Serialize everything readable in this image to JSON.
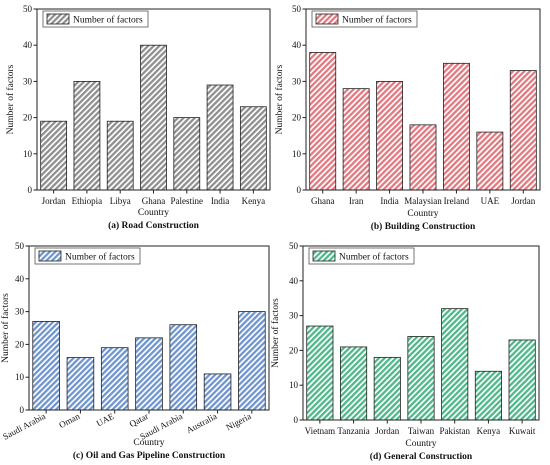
{
  "chart_data": [
    {
      "type": "bar",
      "title": "(a) Road Construction",
      "xlabel": "Country",
      "ylabel": "Number of factors",
      "ylim": [
        0,
        50
      ],
      "yticks": [
        0,
        10,
        20,
        30,
        40,
        50
      ],
      "legend": "top-left",
      "series": [
        {
          "name": "Number of factors",
          "color": "#8f8f8f",
          "values": [
            19,
            30,
            19,
            40,
            20,
            29,
            23
          ]
        }
      ],
      "categories": [
        "Jordan",
        "Ethiopia",
        "Libya",
        "Ghana",
        "Palestine",
        "India",
        "Kenya"
      ]
    },
    {
      "type": "bar",
      "title": "(b) Building Construction",
      "xlabel": "Country",
      "ylabel": "Number of factors",
      "ylim": [
        0,
        50
      ],
      "yticks": [
        0,
        10,
        20,
        30,
        40,
        50
      ],
      "legend": "top-left",
      "series": [
        {
          "name": "Number of factors",
          "color": "#e07a80",
          "values": [
            38,
            28,
            30,
            18,
            35,
            16,
            33
          ]
        }
      ],
      "categories": [
        "Ghana",
        "Iran",
        "India",
        "Malaysian",
        "Ireland",
        "UAE",
        "Jordan"
      ]
    },
    {
      "type": "bar",
      "title": "(c) Oil and Gas Pipeline Construction",
      "xlabel": "Country",
      "ylabel": "Number of factors",
      "ylim": [
        0,
        50
      ],
      "yticks": [
        0,
        10,
        20,
        30,
        40,
        50
      ],
      "legend": "top-left",
      "rotated_ticks": true,
      "series": [
        {
          "name": "Number of factors",
          "color": "#6f95cf",
          "values": [
            27,
            16,
            19,
            22,
            26,
            11,
            30
          ]
        }
      ],
      "categories": [
        "Saudi Arabia",
        "Oman",
        "UAE",
        "Qatar",
        "Saudi Arabia",
        "Australia",
        "Nigeria"
      ]
    },
    {
      "type": "bar",
      "title": "(d) General Construction",
      "xlabel": "Country",
      "ylabel": "Number of factors",
      "ylim": [
        0,
        50
      ],
      "yticks": [
        0,
        10,
        20,
        30,
        40,
        50
      ],
      "legend": "top-left",
      "series": [
        {
          "name": "Number of factors",
          "color": "#4fb88a",
          "values": [
            27,
            21,
            18,
            24,
            32,
            14,
            23
          ]
        }
      ],
      "categories": [
        "Vietnam",
        "Tanzania",
        "Jordan",
        "Taiwan",
        "Pakistan",
        "Kenya",
        "Kuwait"
      ]
    }
  ]
}
